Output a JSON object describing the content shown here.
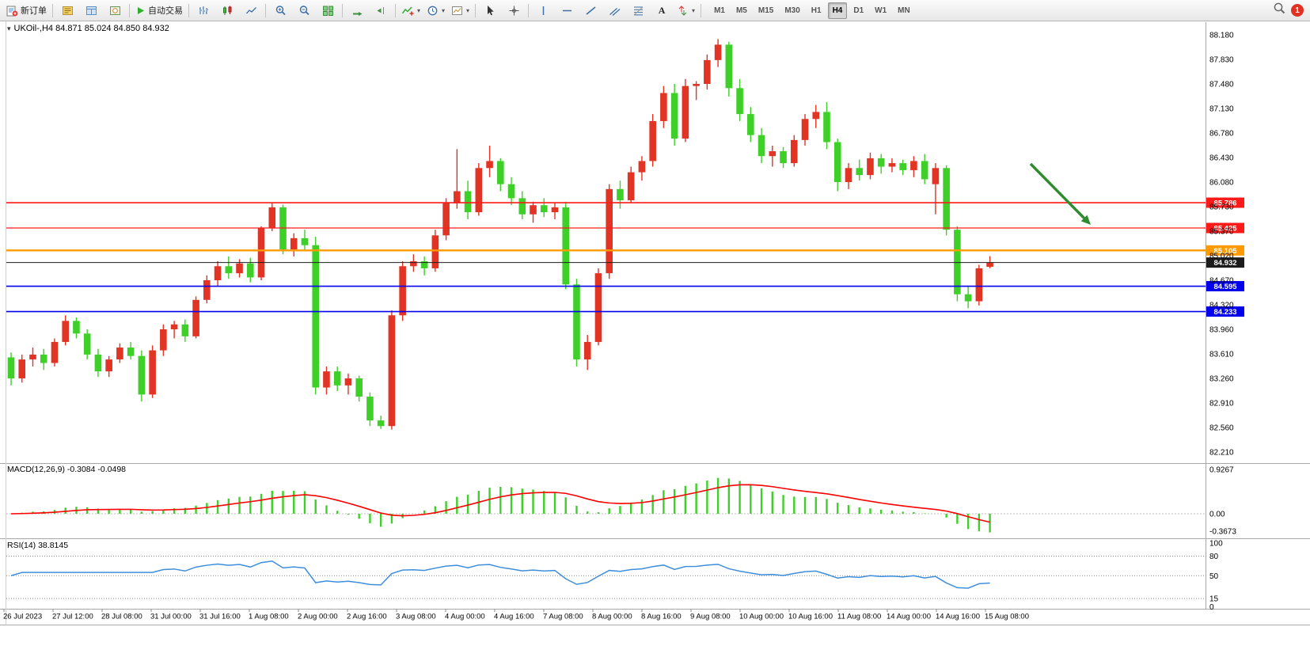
{
  "toolbar": {
    "new_order_label": "新订单",
    "auto_trading_label": "自动交易",
    "text_tool_label": "A",
    "timeframes": [
      "M1",
      "M5",
      "M15",
      "M30",
      "H1",
      "H4",
      "D1",
      "W1",
      "MN"
    ],
    "active_timeframe": "H4",
    "notification_count": "1"
  },
  "chart": {
    "info_line": "UKOil-,H4 84.871 85.024 84.850 84.932",
    "macd_info": "MACD(12,26,9) -0.3084 -0.0498",
    "rsi_info": "RSI(14) 38.8145",
    "price_axis_labels": [
      "88.180",
      "87.830",
      "87.480",
      "87.130",
      "86.780",
      "86.430",
      "86.080",
      "85.730",
      "85.370",
      "85.020",
      "84.670",
      "84.320",
      "83.960",
      "83.610",
      "83.260",
      "82.910",
      "82.560",
      "82.210"
    ],
    "macd_axis_labels": [
      "0.9267",
      "0.00",
      "-0.3673"
    ],
    "rsi_axis_labels": [
      "100",
      "80",
      "50",
      "15",
      "0"
    ],
    "time_axis_labels": [
      "26 Jul 2023",
      "27 Jul 12:00",
      "28 Jul 08:00",
      "31 Jul 00:00",
      "31 Jul 16:00",
      "1 Aug 08:00",
      "2 Aug 00:00",
      "2 Aug 16:00",
      "3 Aug 08:00",
      "4 Aug 00:00",
      "4 Aug 16:00",
      "7 Aug 08:00",
      "8 Aug 00:00",
      "8 Aug 16:00",
      "9 Aug 08:00",
      "10 Aug 00:00",
      "10 Aug 16:00",
      "11 Aug 08:00",
      "14 Aug 00:00",
      "14 Aug 16:00",
      "15 Aug 08:00"
    ],
    "hlines": [
      {
        "price": 85.786,
        "label": "85.786",
        "color": "#ff1a1a",
        "width": 1.7,
        "kind": "level"
      },
      {
        "price": 85.425,
        "label": "85.425",
        "color": "#ff1a1a",
        "width": 1.2,
        "kind": "level"
      },
      {
        "price": 85.105,
        "label": "85.105",
        "color": "#ff9b00",
        "width": 2.4,
        "kind": "level"
      },
      {
        "price": 84.932,
        "label": "84.932",
        "color": "#1c1c1c",
        "width": 1.0,
        "kind": "current_price"
      },
      {
        "price": 84.595,
        "label": "84.595",
        "color": "#0000ee",
        "width": 1.6,
        "kind": "level"
      },
      {
        "price": 84.233,
        "label": "84.233",
        "color": "#0000ee",
        "width": 1.6,
        "kind": "level"
      }
    ],
    "colors": {
      "bull_candle": "#e23424",
      "bear_candle": "#3ed028",
      "macd_hist": "#3ed028",
      "macd_signal": "#ff0000",
      "rsi_line": "#3f8edc",
      "arrow": "#2e8b2e",
      "axis_text": "#000000"
    }
  },
  "chart_data": {
    "type": "candlestick",
    "symbol": "UKOil-",
    "period": "H4",
    "price_axis_range": [
      82.21,
      88.18
    ],
    "ohlc": [
      [
        83.58,
        83.65,
        83.18,
        83.28
      ],
      [
        83.28,
        83.62,
        83.22,
        83.55
      ],
      [
        83.55,
        83.72,
        83.45,
        83.62
      ],
      [
        83.62,
        83.7,
        83.4,
        83.5
      ],
      [
        83.5,
        83.85,
        83.45,
        83.8
      ],
      [
        83.8,
        84.18,
        83.75,
        84.1
      ],
      [
        84.1,
        84.15,
        83.85,
        83.92
      ],
      [
        83.92,
        83.98,
        83.55,
        83.62
      ],
      [
        83.62,
        83.7,
        83.3,
        83.38
      ],
      [
        83.38,
        83.6,
        83.3,
        83.55
      ],
      [
        83.55,
        83.78,
        83.5,
        83.72
      ],
      [
        83.72,
        83.8,
        83.55,
        83.6
      ],
      [
        83.6,
        83.68,
        82.95,
        83.05
      ],
      [
        83.05,
        83.75,
        83.0,
        83.68
      ],
      [
        83.68,
        84.05,
        83.6,
        83.98
      ],
      [
        83.98,
        84.1,
        83.85,
        84.05
      ],
      [
        84.05,
        84.12,
        83.8,
        83.88
      ],
      [
        83.88,
        84.45,
        83.85,
        84.4
      ],
      [
        84.4,
        84.75,
        84.35,
        84.68
      ],
      [
        84.68,
        84.95,
        84.6,
        84.88
      ],
      [
        84.88,
        85.02,
        84.7,
        84.78
      ],
      [
        84.78,
        84.98,
        84.72,
        84.92
      ],
      [
        84.92,
        85.0,
        84.65,
        84.72
      ],
      [
        84.72,
        85.45,
        84.68,
        85.42
      ],
      [
        85.42,
        85.78,
        85.38,
        85.72
      ],
      [
        85.72,
        85.76,
        85.05,
        85.12
      ],
      [
        85.12,
        85.35,
        85.02,
        85.28
      ],
      [
        85.28,
        85.4,
        85.1,
        85.18
      ],
      [
        85.18,
        85.3,
        83.05,
        83.15
      ],
      [
        83.15,
        83.45,
        83.05,
        83.38
      ],
      [
        83.38,
        83.45,
        83.1,
        83.18
      ],
      [
        83.18,
        83.35,
        83.05,
        83.28
      ],
      [
        83.28,
        83.32,
        82.95,
        83.02
      ],
      [
        83.02,
        83.08,
        82.6,
        82.68
      ],
      [
        82.68,
        82.75,
        82.56,
        82.6
      ],
      [
        82.6,
        84.25,
        82.55,
        84.18
      ],
      [
        84.18,
        84.95,
        84.1,
        84.88
      ],
      [
        84.88,
        85.05,
        84.8,
        84.95
      ],
      [
        84.95,
        85.02,
        84.75,
        84.85
      ],
      [
        84.85,
        85.4,
        84.8,
        85.32
      ],
      [
        85.32,
        85.85,
        85.25,
        85.78
      ],
      [
        85.78,
        86.55,
        85.7,
        85.95
      ],
      [
        85.95,
        86.1,
        85.55,
        85.65
      ],
      [
        85.65,
        86.35,
        85.6,
        86.28
      ],
      [
        86.28,
        86.6,
        86.15,
        86.38
      ],
      [
        86.38,
        86.42,
        85.95,
        86.05
      ],
      [
        86.05,
        86.15,
        85.75,
        85.85
      ],
      [
        85.85,
        85.95,
        85.55,
        85.62
      ],
      [
        85.62,
        85.8,
        85.5,
        85.75
      ],
      [
        85.75,
        85.85,
        85.58,
        85.65
      ],
      [
        85.65,
        85.78,
        85.55,
        85.72
      ],
      [
        85.72,
        85.8,
        84.55,
        84.62
      ],
      [
        84.62,
        84.7,
        83.45,
        83.55
      ],
      [
        83.55,
        83.9,
        83.4,
        83.8
      ],
      [
        83.8,
        84.85,
        83.75,
        84.78
      ],
      [
        84.78,
        86.05,
        84.7,
        85.98
      ],
      [
        85.98,
        86.1,
        85.7,
        85.82
      ],
      [
        85.82,
        86.3,
        85.78,
        86.22
      ],
      [
        86.22,
        86.45,
        86.1,
        86.38
      ],
      [
        86.38,
        87.05,
        86.3,
        86.95
      ],
      [
        86.95,
        87.45,
        86.85,
        87.35
      ],
      [
        87.35,
        87.48,
        86.6,
        86.7
      ],
      [
        86.7,
        87.55,
        86.65,
        87.45
      ],
      [
        87.45,
        87.52,
        87.25,
        87.48
      ],
      [
        87.48,
        87.9,
        87.4,
        87.82
      ],
      [
        87.82,
        88.12,
        87.72,
        88.04
      ],
      [
        88.04,
        88.08,
        87.3,
        87.42
      ],
      [
        87.42,
        87.55,
        86.95,
        87.05
      ],
      [
        87.05,
        87.15,
        86.65,
        86.75
      ],
      [
        86.75,
        86.85,
        86.35,
        86.45
      ],
      [
        86.45,
        86.6,
        86.3,
        86.52
      ],
      [
        86.52,
        86.58,
        86.28,
        86.35
      ],
      [
        86.35,
        86.75,
        86.3,
        86.68
      ],
      [
        86.68,
        87.05,
        86.6,
        86.98
      ],
      [
        86.98,
        87.18,
        86.85,
        87.08
      ],
      [
        87.08,
        87.22,
        86.55,
        86.65
      ],
      [
        86.65,
        86.7,
        85.95,
        86.08
      ],
      [
        86.08,
        86.35,
        85.98,
        86.28
      ],
      [
        86.28,
        86.4,
        86.1,
        86.18
      ],
      [
        86.18,
        86.5,
        86.12,
        86.42
      ],
      [
        86.42,
        86.48,
        86.2,
        86.3
      ],
      [
        86.3,
        86.42,
        86.22,
        86.35
      ],
      [
        86.35,
        86.4,
        86.18,
        86.25
      ],
      [
        86.25,
        86.45,
        86.15,
        86.38
      ],
      [
        86.38,
        86.48,
        86.05,
        86.12
      ],
      [
        86.05,
        86.35,
        85.62,
        86.28
      ],
      [
        86.28,
        86.32,
        85.32,
        85.4
      ],
      [
        85.4,
        85.45,
        84.38,
        84.48
      ],
      [
        84.48,
        84.6,
        84.28,
        84.38
      ],
      [
        84.38,
        84.9,
        84.32,
        84.85
      ],
      [
        84.871,
        85.024,
        84.85,
        84.932
      ]
    ],
    "overlays": {
      "horizontal_levels": [
        85.786,
        85.425,
        85.105,
        84.932,
        84.595,
        84.233
      ],
      "trend_arrow": {
        "from": [
          1302,
          207
        ],
        "to": [
          1378,
          284
        ],
        "color": "#2e8b2e"
      }
    },
    "indicators": [
      {
        "name": "MACD",
        "params": [
          12,
          26,
          9
        ],
        "last_values": [
          -0.3084,
          -0.0498
        ],
        "axis_range": [
          -0.3673,
          0.9267
        ]
      },
      {
        "name": "RSI",
        "params": [
          14
        ],
        "last_value": 38.8145,
        "levels": [
          80,
          50,
          15
        ],
        "axis_range": [
          0,
          100
        ]
      }
    ]
  }
}
